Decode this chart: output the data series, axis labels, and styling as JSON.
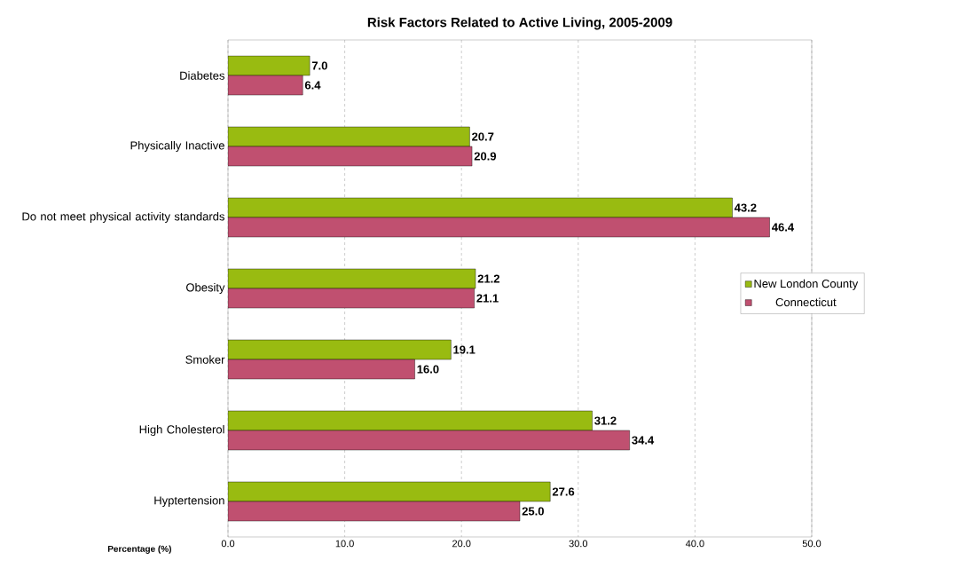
{
  "chart_data": {
    "type": "bar",
    "orientation": "horizontal",
    "title": "Risk Factors Related to Active Living, 2005-2009",
    "xlabel": "Percentage (%)",
    "categories": [
      "Diabetes",
      "Physically Inactive",
      "Do not meet physical activity standards",
      "Obesity",
      "Smoker",
      "High Cholesterol",
      "Hyptertension"
    ],
    "series": [
      {
        "name": "New London County",
        "color": "#99bb11",
        "values": [
          7.0,
          20.7,
          43.2,
          21.2,
          19.1,
          31.2,
          27.6
        ],
        "value_labels": [
          "7.0",
          "20.7",
          "43.2",
          "21.2",
          "19.1",
          "31.2",
          "27.6"
        ]
      },
      {
        "name": "Connecticut",
        "color": "#c05070",
        "values": [
          6.4,
          20.9,
          46.4,
          21.1,
          16.0,
          34.4,
          25.0
        ],
        "value_labels": [
          "6.4",
          "20.9",
          "46.4",
          "21.1",
          "16.0",
          "34.4",
          "25.0"
        ]
      }
    ],
    "xlim": [
      0,
      50
    ],
    "xticks": [
      {
        "value": 0,
        "label": "0.0"
      },
      {
        "value": 10,
        "label": "10.0"
      },
      {
        "value": 20,
        "label": "20.0"
      },
      {
        "value": 30,
        "label": "30.0"
      },
      {
        "value": 40,
        "label": "40.0"
      },
      {
        "value": 50,
        "label": "50.0"
      }
    ],
    "grid": "x",
    "legend": "right"
  }
}
